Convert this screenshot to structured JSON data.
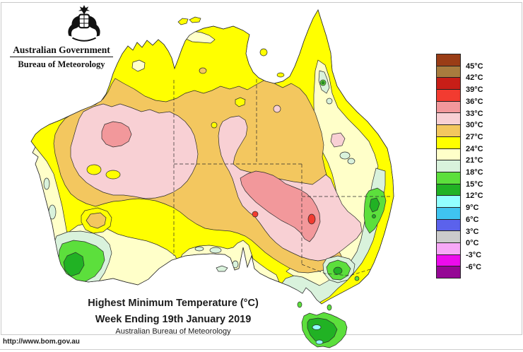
{
  "header": {
    "government": "Australian Government",
    "bureau": "Bureau of Meteorology"
  },
  "titles": {
    "main": "Highest Minimum Temperature (°C)",
    "sub": "Week Ending 19th January 2019",
    "org": "Australian Bureau of Meteorology"
  },
  "footer": {
    "url": "http://www.bom.gov.au"
  },
  "palette": {
    "band_45plus": "#9A3D16",
    "band_42_45": "#A87C3E",
    "band_39_42": "#C81E17",
    "band_36_39": "#F23B30",
    "band_33_36": "#F2989B",
    "band_30_33": "#F8D0D4",
    "band_27_30": "#F3C75F",
    "band_24_27": "#FFFF00",
    "band_21_24": "#FFFFC9",
    "band_18_21": "#D9F2DC",
    "band_15_18": "#5CDF3C",
    "band_12_15": "#21B224",
    "band_9_12": "#93FFFF",
    "band_6_9": "#3FC4F0",
    "band_3_6": "#5B62EC",
    "band_0_3": "#CBCBCB",
    "band_m3_0": "#F7A8F7",
    "band_m6_m3": "#EC0CEC",
    "band_below_m6": "#950795"
  },
  "legend": {
    "unit": "°C",
    "entries": [
      {
        "color": "#9A3D16",
        "label": "45°C",
        "speckled": false
      },
      {
        "color": "#A87C3E",
        "label": "42°C",
        "speckled": true
      },
      {
        "color": "#C81E17",
        "label": "39°C",
        "speckled": false
      },
      {
        "color": "#F23B30",
        "label": "36°C",
        "speckled": false
      },
      {
        "color": "#F2989B",
        "label": "33°C",
        "speckled": false
      },
      {
        "color": "#F8D0D4",
        "label": "30°C",
        "speckled": false
      },
      {
        "color": "#F3C75F",
        "label": "27°C",
        "speckled": false
      },
      {
        "color": "#FFFF00",
        "label": "24°C",
        "speckled": false
      },
      {
        "color": "#FFFFC9",
        "label": "21°C",
        "speckled": false
      },
      {
        "color": "#D9F2DC",
        "label": "18°C",
        "speckled": false
      },
      {
        "color": "#5CDF3C",
        "label": "15°C",
        "speckled": false
      },
      {
        "color": "#21B224",
        "label": "12°C",
        "speckled": false
      },
      {
        "color": "#93FFFF",
        "label": "9°C",
        "speckled": false
      },
      {
        "color": "#3FC4F0",
        "label": "6°C",
        "speckled": false
      },
      {
        "color": "#5B62EC",
        "label": "3°C",
        "speckled": false
      },
      {
        "color": "#CBCBCB",
        "label": "0°C",
        "speckled": false
      },
      {
        "color": "#F7A8F7",
        "label": "-3°C",
        "speckled": false
      },
      {
        "color": "#EC0CEC",
        "label": "-6°C",
        "speckled": false
      },
      {
        "color": "#950795",
        "label": "",
        "speckled": false
      }
    ]
  },
  "map_data": {
    "type": "filled-contour-map",
    "region": "Australia",
    "variable": "Highest Minimum Temperature",
    "unit": "°C",
    "period": "Week Ending 19th January 2019",
    "notable_features": [
      "Yellow 24-27°C band around most of the coastline and across the Top End and Cape York",
      "Orange 27-30°C belt across the interior from the northwest coast to the southeast",
      "Pink 30-33°C blob over the Pilbara/western interior with 33-36°C salmon core",
      "Large pink 30-33°C region over central/eastern interior with 33-36°C salmon core and small 36-39°C red spots",
      "Cream 21-24°C along the west coast, southwest, southern coast and eastern Queensland/NSW",
      "Pale green 18-21°C and green 15-18°C / 12-15°C in southwest WA corner, NSW tablelands, Victorian Alps",
      "Tasmania mostly green 12-18°C with cyan 9-12°C highland spots"
    ]
  }
}
